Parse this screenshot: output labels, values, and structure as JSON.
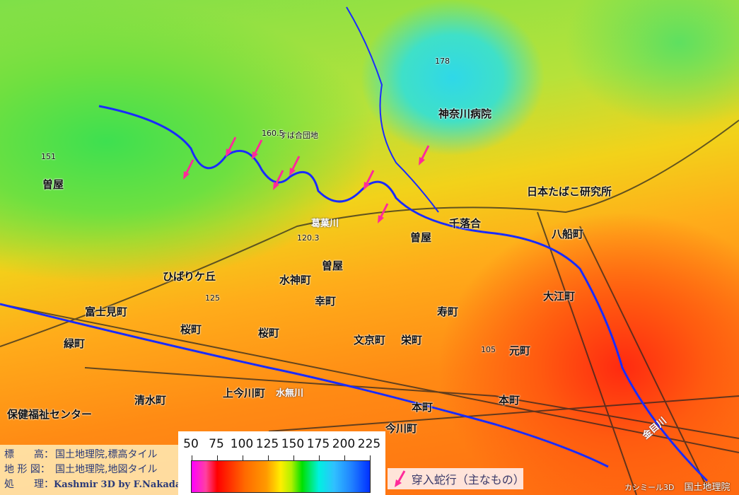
{
  "map": {
    "labels": [
      {
        "text": "曽屋",
        "cls": ""
      },
      {
        "text": "富士見町",
        "cls": ""
      },
      {
        "text": "緑町",
        "cls": ""
      },
      {
        "text": "桜町",
        "cls": ""
      },
      {
        "text": "桜町",
        "cls": ""
      },
      {
        "text": "幸町",
        "cls": ""
      },
      {
        "text": "水神町",
        "cls": ""
      },
      {
        "text": "曽屋",
        "cls": ""
      },
      {
        "text": "寿町",
        "cls": ""
      },
      {
        "text": "元町",
        "cls": ""
      },
      {
        "text": "栄町",
        "cls": ""
      },
      {
        "text": "文京町",
        "cls": ""
      },
      {
        "text": "本町",
        "cls": ""
      },
      {
        "text": "本町",
        "cls": ""
      },
      {
        "text": "清水町",
        "cls": ""
      },
      {
        "text": "保健福祉センター",
        "cls": ""
      },
      {
        "text": "上今川町",
        "cls": ""
      },
      {
        "text": "今川町",
        "cls": ""
      },
      {
        "text": "八船町",
        "cls": ""
      },
      {
        "text": "大江町",
        "cls": ""
      },
      {
        "text": "千落合",
        "cls": ""
      },
      {
        "text": "曽屋",
        "cls": ""
      },
      {
        "text": "ひばりケ丘",
        "cls": ""
      },
      {
        "text": "日本たばこ研究所",
        "cls": ""
      },
      {
        "text": "神奈川病院",
        "cls": ""
      },
      {
        "text": "すば合団地",
        "cls": "small"
      },
      {
        "text": "葛菓川",
        "cls": "river"
      },
      {
        "text": "水無川",
        "cls": "river"
      },
      {
        "text": "金目川",
        "cls": "river"
      },
      {
        "text": "120.3",
        "cls": "small"
      },
      {
        "text": "160.5",
        "cls": "small"
      },
      {
        "text": "151",
        "cls": "small"
      },
      {
        "text": "125",
        "cls": "small"
      },
      {
        "text": "105",
        "cls": "small"
      },
      {
        "text": "178",
        "cls": "small"
      }
    ],
    "colors": {
      "river": "#1a2cff",
      "meander_arrow": "#ff2a9a"
    }
  },
  "credits": {
    "rows": [
      {
        "key": "標　　高：",
        "value": "国土地理院,標高タイル"
      },
      {
        "key": "地 形 図：",
        "value": "国土地理院,地図タイル"
      },
      {
        "key": "処　　理：",
        "value": "Kashmir 3D by F.Nakada"
      }
    ]
  },
  "legend": {
    "ticks": [
      "50",
      "75",
      "100",
      "125",
      "150",
      "175",
      "200",
      "225"
    ],
    "range": [
      50,
      225
    ],
    "colors": [
      "#ff00ff",
      "#ff0000",
      "#ff9a00",
      "#ffee00",
      "#00e000",
      "#00f0e0",
      "#2080ff",
      "#0030ff"
    ]
  },
  "arrow_legend": {
    "icon": "pink-arrow-icon",
    "label": "穿入蛇行（主なもの）"
  },
  "attribution": {
    "software": "カシミール3D",
    "source": "国土地理院"
  }
}
